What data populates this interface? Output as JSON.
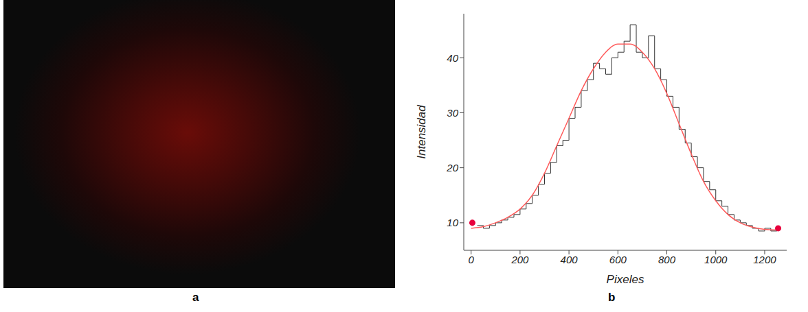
{
  "panels": {
    "a": {
      "label": "a"
    },
    "b": {
      "label": "b"
    }
  },
  "chart_data": {
    "type": "line",
    "x_label": "Pixeles",
    "y_label": "Intensidad",
    "xlim": [
      -30,
      1290
    ],
    "ylim": [
      5,
      48
    ],
    "xticks": [
      0,
      200,
      400,
      600,
      800,
      1000,
      1200
    ],
    "yticks": [
      10,
      20,
      30,
      40
    ],
    "grid": false,
    "series": [
      {
        "type": "line",
        "color": "#333333",
        "line_style": "step",
        "x": [
          25,
          50,
          75,
          100,
          125,
          150,
          175,
          200,
          225,
          250,
          275,
          300,
          325,
          350,
          375,
          400,
          425,
          450,
          475,
          500,
          525,
          550,
          575,
          600,
          625,
          650,
          675,
          700,
          725,
          750,
          775,
          800,
          825,
          850,
          875,
          900,
          925,
          950,
          975,
          1000,
          1025,
          1050,
          1075,
          1100,
          1125,
          1150,
          1175,
          1200,
          1225,
          1250
        ],
        "values": [
          9.5,
          9,
          9.5,
          10,
          10.5,
          11,
          11.5,
          12.5,
          13.5,
          15,
          17,
          19,
          21,
          24,
          25,
          29,
          31,
          34,
          36,
          39,
          38,
          37,
          40,
          41,
          43,
          46,
          41,
          40,
          44,
          38,
          36,
          33,
          31,
          27,
          24.5,
          22,
          20,
          17.5,
          16,
          14,
          13,
          11.5,
          10.5,
          10,
          9.5,
          9,
          8.5,
          9,
          8.5,
          8.7
        ]
      },
      {
        "type": "line",
        "color": "#ff5a5a",
        "line_style": "solid",
        "x": [
          0,
          50,
          100,
          150,
          200,
          250,
          300,
          350,
          400,
          450,
          500,
          550,
          600,
          650,
          700,
          750,
          800,
          850,
          900,
          950,
          1000,
          1050,
          1100,
          1150,
          1200,
          1250
        ],
        "values": [
          9,
          9.3,
          10,
          11,
          12.5,
          15,
          19,
          24,
          29,
          34,
          38,
          41,
          42.5,
          42.5,
          41,
          38,
          33.5,
          28,
          22.5,
          17.5,
          14,
          11.5,
          10,
          9.2,
          8.8,
          8.7
        ]
      },
      {
        "type": "scatter",
        "color": "#e8003c",
        "marker": "circle",
        "x": [
          5,
          1255
        ],
        "values": [
          10,
          9
        ]
      }
    ]
  }
}
